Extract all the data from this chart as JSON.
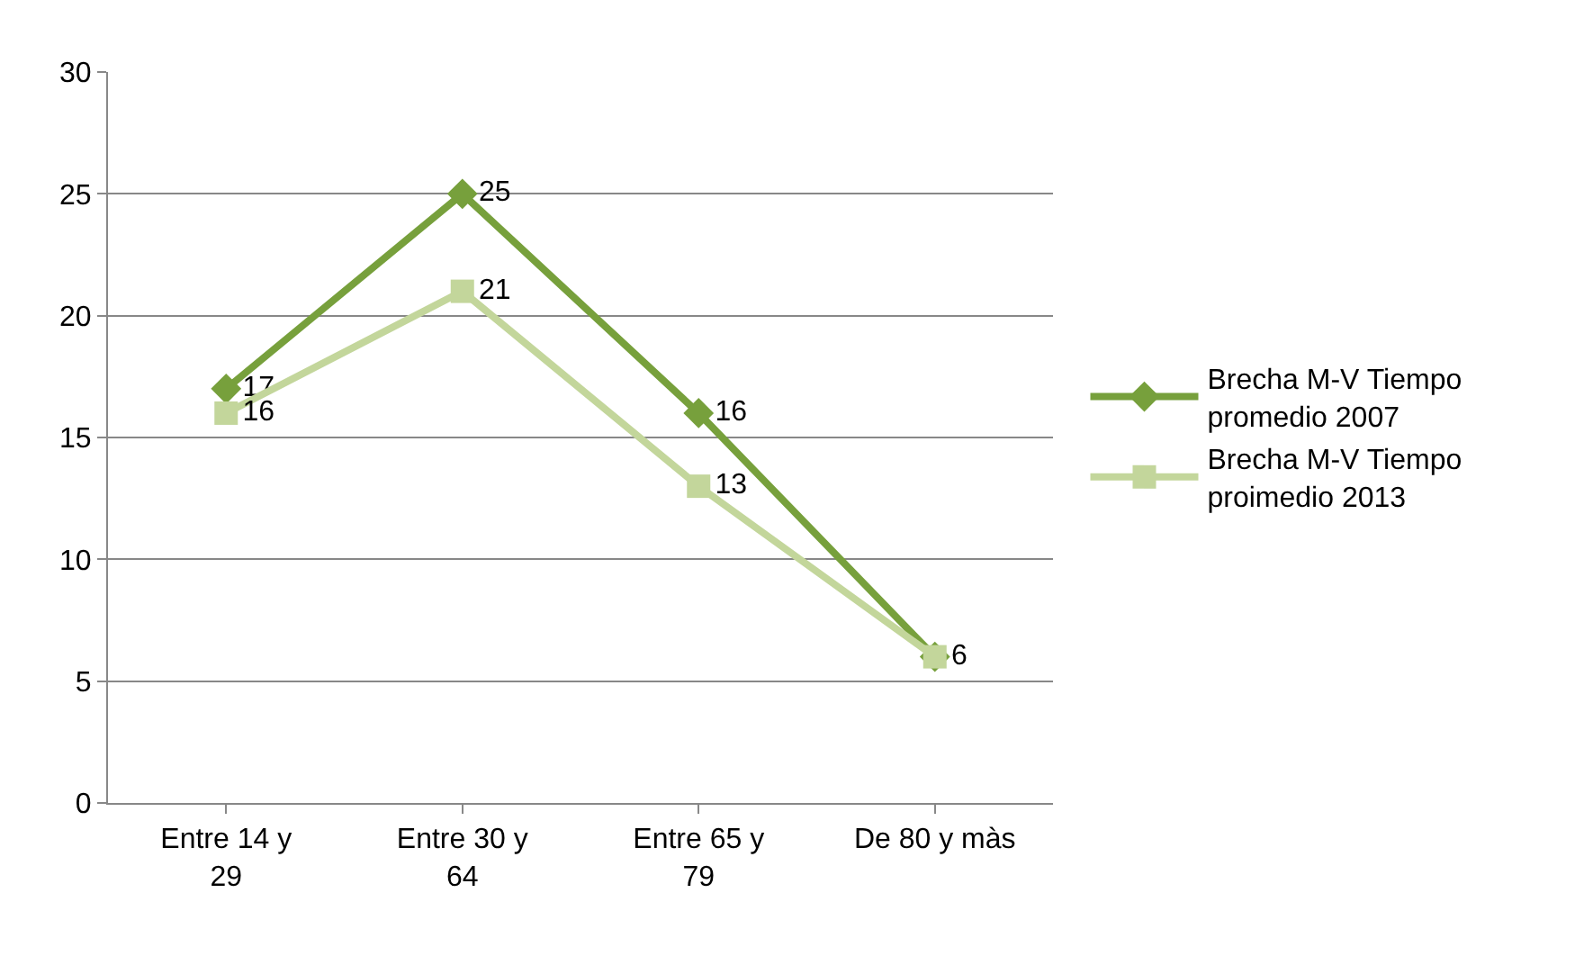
{
  "chart_data": {
    "type": "line",
    "categories": [
      "Entre 14 y 29",
      "Entre 30 y 64",
      "Entre 65 y 79",
      "De 80 y màs"
    ],
    "series": [
      {
        "name": "Brecha M-V Tiempo promedio 2007",
        "color": "#77a03c",
        "values": [
          17,
          25,
          16,
          6
        ],
        "marker": "diamond",
        "value_labels": [
          "17",
          "25",
          "16",
          null
        ]
      },
      {
        "name": "Brecha M-V Tiempo proimedio 2013",
        "color": "#c3d69b",
        "values": [
          16,
          21,
          13,
          6
        ],
        "marker": "square",
        "value_labels": [
          "16",
          "21",
          "13",
          "6"
        ]
      }
    ],
    "ylim": [
      0,
      30
    ],
    "yticks": [
      0,
      5,
      10,
      15,
      20,
      25,
      30
    ],
    "grid": "y",
    "legend": "right",
    "line_style": "solid"
  }
}
